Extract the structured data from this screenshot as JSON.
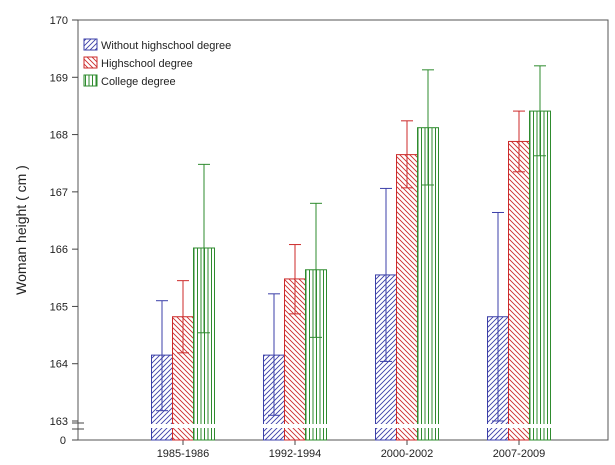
{
  "chart_data": {
    "type": "bar",
    "title": "",
    "xlabel": "",
    "ylabel": "Woman height ( cm )",
    "categories": [
      "1985-1986",
      "1992-1994",
      "2000-2002",
      "2007-2009"
    ],
    "ylim": [
      163,
      170
    ],
    "yticks": [
      163,
      164,
      165,
      166,
      167,
      168,
      169,
      170
    ],
    "axis_break": true,
    "axis_break_label": "0",
    "grid": false,
    "legend_position": "top-left",
    "series": [
      {
        "name": "Without highschool degree",
        "color": "#3b3fa8",
        "hatch": "diagonal-right",
        "values": [
          164.15,
          164.15,
          165.55,
          164.82
        ],
        "error_low": [
          163.18,
          163.1,
          164.04,
          163.0
        ],
        "error_high": [
          165.1,
          165.22,
          167.06,
          166.64
        ]
      },
      {
        "name": "Highschool degree",
        "color": "#cc2a2a",
        "hatch": "diagonal-left",
        "values": [
          164.82,
          165.48,
          167.65,
          167.88
        ],
        "error_low": [
          164.19,
          164.87,
          167.07,
          167.35
        ],
        "error_high": [
          165.45,
          166.08,
          168.24,
          168.41
        ]
      },
      {
        "name": "College degree",
        "color": "#2e8b2e",
        "hatch": "vertical",
        "values": [
          166.02,
          165.64,
          168.12,
          168.41
        ],
        "error_low": [
          164.54,
          164.46,
          167.12,
          167.63
        ],
        "error_high": [
          167.48,
          166.8,
          169.13,
          169.2
        ]
      }
    ]
  }
}
